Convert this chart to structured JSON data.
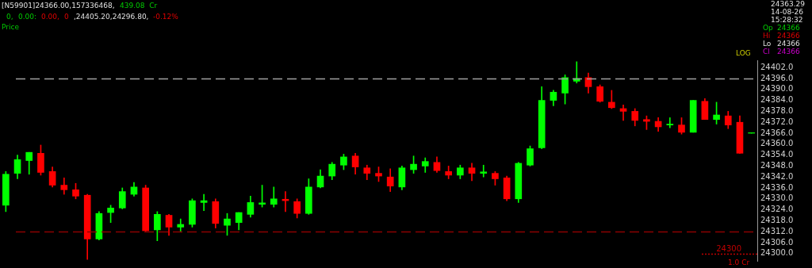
{
  "chart_data": {
    "type": "candlestick",
    "categories": [
      null,
      null,
      null,
      null,
      null,
      null,
      null,
      null,
      null,
      null,
      null,
      null,
      null,
      null,
      null,
      null,
      null,
      null,
      null,
      null,
      null,
      null,
      null,
      null,
      null,
      null,
      null,
      null,
      null,
      null,
      null,
      null,
      null,
      null,
      null,
      null,
      null,
      null,
      null,
      null,
      null,
      null,
      null,
      null,
      null,
      null,
      null,
      null,
      null,
      null,
      null,
      null,
      null,
      null,
      null,
      null,
      null,
      null,
      null,
      null,
      null,
      null,
      null,
      null,
      null
    ],
    "ohlc": [
      [
        24326.5,
        24345,
        24323,
        24343.5
      ],
      [
        24344,
        24354,
        24341,
        24351.5
      ],
      [
        24351,
        24355.5,
        24343.5,
        24355.5
      ],
      [
        24355,
        24359.5,
        24343,
        24344.5
      ],
      [
        24345,
        24347.5,
        24336.5,
        24337.5
      ],
      [
        24337.5,
        24341.5,
        24332.5,
        24335
      ],
      [
        24335,
        24338.5,
        24330,
        24331.5
      ],
      [
        24332,
        24332.5,
        24296.8,
        24308
      ],
      [
        24308,
        24323,
        24307.5,
        24322
      ],
      [
        24322.5,
        24326.5,
        24317,
        24325
      ],
      [
        24325,
        24336,
        24324.5,
        24334
      ],
      [
        24332.5,
        24339,
        24331.5,
        24336.5
      ],
      [
        24336,
        24337.5,
        24312,
        24312.5
      ],
      [
        24313,
        24323,
        24307,
        24321.5
      ],
      [
        24321,
        24321.5,
        24310,
        24314.5
      ],
      [
        24314.5,
        24319,
        24312,
        24316
      ],
      [
        24316,
        24330,
        24314.5,
        24329
      ],
      [
        24328,
        24332.5,
        24323.5,
        24329
      ],
      [
        24328.5,
        24330,
        24314,
        24316.5
      ],
      [
        24315.5,
        24322,
        24310,
        24319
      ],
      [
        24317,
        24322.5,
        24313,
        24322.5
      ],
      [
        24321.5,
        24331.5,
        24320,
        24328
      ],
      [
        24327,
        24337.5,
        24325.5,
        24327.8
      ],
      [
        24327,
        24336.5,
        24325.5,
        24330
      ],
      [
        24329.8,
        24334,
        24323,
        24329
      ],
      [
        24328.5,
        24330,
        24319.5,
        24322
      ],
      [
        24322,
        24341,
        24321.5,
        24336.5
      ],
      [
        24336.5,
        24346,
        24336,
        24342.5
      ],
      [
        24342.5,
        24350,
        24340.5,
        24349
      ],
      [
        24348.5,
        24354.5,
        24346,
        24353
      ],
      [
        24353.5,
        24355,
        24343.5,
        24347.5
      ],
      [
        24347,
        24348.5,
        24340.5,
        24344
      ],
      [
        24344,
        24347.5,
        24339.5,
        24342.5
      ],
      [
        24342,
        24346.5,
        24334,
        24337
      ],
      [
        24336.5,
        24348,
        24335,
        24347
      ],
      [
        24346,
        24353.5,
        24344,
        24349
      ],
      [
        24348,
        24352.5,
        24344.5,
        24350.5
      ],
      [
        24350,
        24353,
        24344.5,
        24345.5
      ],
      [
        24345,
        24348,
        24341,
        24343
      ],
      [
        24343,
        24348.5,
        24341,
        24347
      ],
      [
        24347,
        24349.5,
        24340,
        24344
      ],
      [
        24344,
        24348.5,
        24342,
        24344.8
      ],
      [
        24344,
        24345,
        24337.5,
        24341
      ],
      [
        24341.5,
        24342.5,
        24329,
        24330
      ],
      [
        24330,
        24350,
        24328,
        24349.5
      ],
      [
        24348.5,
        24359,
        24348,
        24357.5
      ],
      [
        24358,
        24391.5,
        24357.5,
        24384
      ],
      [
        24384,
        24389.5,
        24381,
        24388.5
      ],
      [
        24388,
        24398,
        24382,
        24396.5
      ],
      [
        24394.5,
        24405.2,
        24393.5,
        24396
      ],
      [
        24396.5,
        24399,
        24388,
        24391.5
      ],
      [
        24391.5,
        24392.5,
        24383,
        24383.5
      ],
      [
        24383,
        24389.5,
        24379.5,
        24380
      ],
      [
        24379.5,
        24381.5,
        24373,
        24378
      ],
      [
        24378,
        24379.5,
        24370,
        24373
      ],
      [
        24373.5,
        24375.5,
        24368,
        24372.5
      ],
      [
        24372.5,
        24374.5,
        24367,
        24369.5
      ],
      [
        24370.5,
        24374.5,
        24369,
        24371
      ],
      [
        24370.5,
        24374.5,
        24365.5,
        24366.5
      ],
      [
        24366.5,
        24384,
        24366.5,
        24384
      ],
      [
        24383.5,
        24385,
        24373.5,
        24373.5
      ],
      [
        24373.5,
        24383,
        24371,
        24376
      ],
      [
        24375.5,
        24378,
        24368.5,
        24370.5
      ],
      [
        24372,
        24375.5,
        24355,
        24355
      ],
      [
        24366,
        24366,
        24366,
        24366
      ]
    ],
    "ylim": [
      24296,
      24406
    ],
    "yticks": [
      {
        "value": 24300,
        "label": "24300.0"
      },
      {
        "value": 24306,
        "label": "24306.0"
      },
      {
        "value": 24312,
        "label": "24312.0"
      },
      {
        "value": 24318,
        "label": "24318.0"
      },
      {
        "value": 24324,
        "label": "24324.0"
      },
      {
        "value": 24330,
        "label": "24330.0"
      },
      {
        "value": 24336,
        "label": "24336.0"
      },
      {
        "value": 24342,
        "label": "24342.0"
      },
      {
        "value": 24348,
        "label": "24348.0"
      },
      {
        "value": 24354,
        "label": "24354.0"
      },
      {
        "value": 24360,
        "label": "24360.0"
      },
      {
        "value": 24366,
        "label": "24366.0"
      },
      {
        "value": 24372,
        "label": "24372.0"
      },
      {
        "value": 24378,
        "label": "24378.0"
      },
      {
        "value": 24384,
        "label": "24384.0"
      },
      {
        "value": 24390,
        "label": "24390.0"
      },
      {
        "value": 24396,
        "label": "24396.0"
      },
      {
        "value": 24402,
        "label": "24402.0"
      }
    ],
    "tick_labels": "y",
    "ref_lines": [
      {
        "axis": "y",
        "value": 24396,
        "color": "#a0a0a0",
        "line_style": "dashed"
      },
      {
        "axis": "y",
        "value": 24312,
        "color": "#8b0000",
        "line_style": "dashed"
      },
      {
        "axis": "y",
        "value": 24300,
        "label": "24300",
        "color": "#c00000",
        "line_style": "dotted"
      }
    ],
    "annotations": [
      "[N59901]24366.00,157336468,",
      "439.08  Cr",
      "0,",
      "0.00:",
      "0.00,",
      "0",
      ",24405.20,24296.80,",
      "-0.12%",
      "Price",
      "24363.29",
      "14-08-26",
      "15:28:32",
      "Op",
      "24366",
      "Hi",
      "24366",
      "Lo",
      "24366",
      "Cl",
      "24366",
      "LOG",
      "1.0 Cr"
    ]
  }
}
